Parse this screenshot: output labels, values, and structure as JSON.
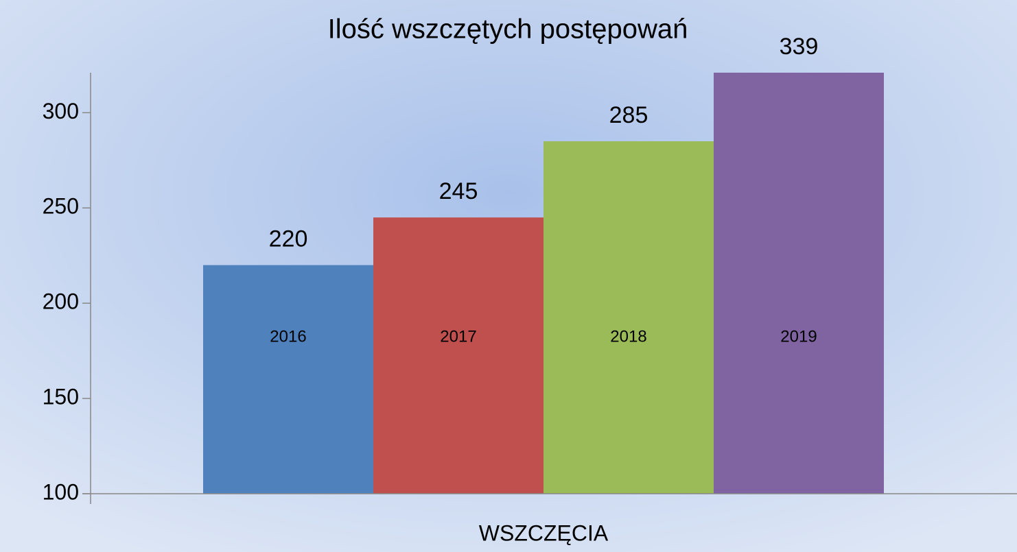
{
  "chart_data": {
    "type": "bar",
    "title": "Ilość wszczętych postępowań",
    "categories": [
      "WSZCZĘCIA"
    ],
    "series": [
      {
        "name": "2016",
        "color": "#4f81bd",
        "values": [
          220
        ]
      },
      {
        "name": "2017",
        "color": "#c0504d",
        "values": [
          245
        ]
      },
      {
        "name": "2018",
        "color": "#9bbb59",
        "values": [
          285
        ]
      },
      {
        "name": "2019",
        "color": "#8064a2",
        "values": [
          339
        ]
      }
    ],
    "ylim": [
      100,
      321
    ],
    "yticks": [
      100,
      150,
      200,
      250,
      300
    ],
    "grid": false
  }
}
